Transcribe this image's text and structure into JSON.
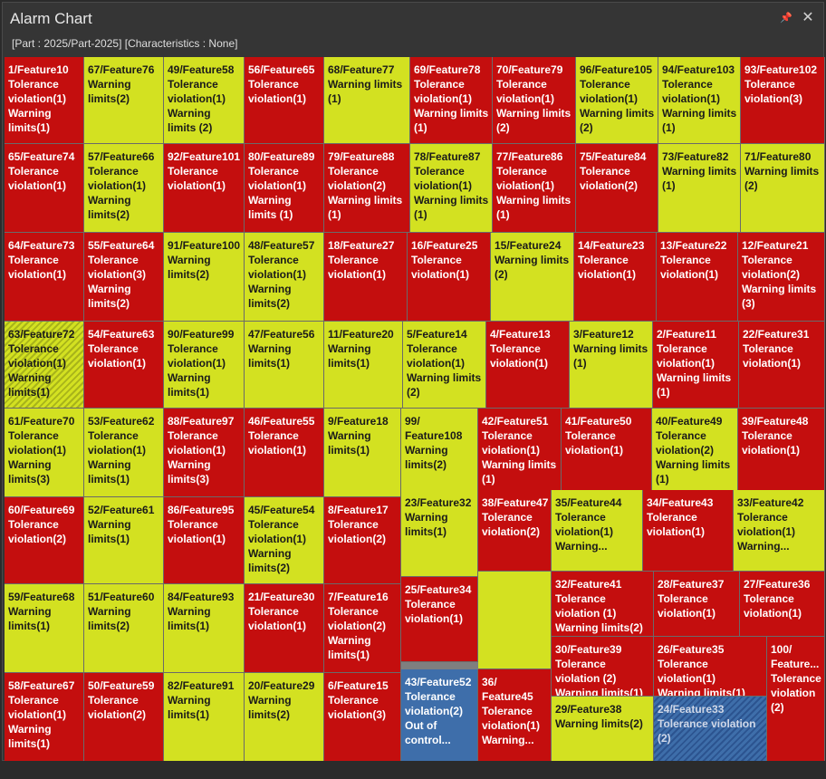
{
  "window": {
    "title": "Alarm Chart",
    "pin_icon": "pin-icon",
    "close_icon": "close-icon",
    "subtitle": "[Part : 2025/Part-2025] [Characteristics : None]"
  },
  "colors": {
    "tolerance_violation": "#c40e0e",
    "warning": "#d3e121",
    "out_of_control": "#3e6eaa"
  },
  "cells": [
    {
      "id": "c1",
      "label": "1/Feature10\nTolerance violation(1)\nWarning limits(1)",
      "color": "red"
    },
    {
      "id": "c67",
      "label": "67/Feature76\nWarning limits(2)",
      "color": "yellow"
    },
    {
      "id": "c49",
      "label": "49/Feature58\nTolerance violation(1)\nWarning limits (2)",
      "color": "yellow"
    },
    {
      "id": "c56",
      "label": "56/Feature65\nTolerance violation(1)",
      "color": "red"
    },
    {
      "id": "c68",
      "label": "68/Feature77\nWarning limits (1)",
      "color": "yellow"
    },
    {
      "id": "c69",
      "label": "69/Feature78\nTolerance violation(1)\nWarning limits (1)",
      "color": "red"
    },
    {
      "id": "c70",
      "label": "70/Feature79\nTolerance violation(1)\nWarning limits (2)",
      "color": "red"
    },
    {
      "id": "c96",
      "label": "96/Feature105\nTolerance violation(1)\nWarning limits (2)",
      "color": "yellow"
    },
    {
      "id": "c94",
      "label": "94/Feature103\nTolerance violation(1)\nWarning limits (1)",
      "color": "yellow"
    },
    {
      "id": "c93",
      "label": "93/Feature102\nTolerance violation(3)",
      "color": "red"
    },
    {
      "id": "c65",
      "label": "65/Feature74\nTolerance violation(1)",
      "color": "red"
    },
    {
      "id": "c57",
      "label": "57/Feature66\nTolerance violation(1)\nWarning limits(2)",
      "color": "yellow"
    },
    {
      "id": "c92",
      "label": "92/Feature101\nTolerance violation(1)",
      "color": "red"
    },
    {
      "id": "c80",
      "label": "80/Feature89\nTolerance violation(1)\nWarning limits (1)",
      "color": "red"
    },
    {
      "id": "c79",
      "label": "79/Feature88\nTolerance violation(2)\nWarning limits (1)",
      "color": "red"
    },
    {
      "id": "c78",
      "label": "78/Feature87\nTolerance violation(1)\nWarning limits (1)",
      "color": "yellow"
    },
    {
      "id": "c77",
      "label": "77/Feature86\nTolerance violation(1)\nWarning limits (1)",
      "color": "red"
    },
    {
      "id": "c75",
      "label": "75/Feature84\nTolerance violation(2)",
      "color": "red"
    },
    {
      "id": "c73",
      "label": "73/Feature82\nWarning limits (1)",
      "color": "yellow"
    },
    {
      "id": "c71",
      "label": "71/Feature80\nWarning limits (2)",
      "color": "yellow"
    },
    {
      "id": "c64",
      "label": "64/Feature73\nTolerance violation(1)",
      "color": "red"
    },
    {
      "id": "c55",
      "label": "55/Feature64\nTolerance violation(3)\nWarning limits(2)",
      "color": "red"
    },
    {
      "id": "c91",
      "label": "91/Feature100\nWarning limits(2)",
      "color": "yellow"
    },
    {
      "id": "c48",
      "label": "48/Feature57\nTolerance violation(1)\nWarning limits(2)",
      "color": "yellow"
    },
    {
      "id": "c18",
      "label": "18/Feature27\nTolerance violation(1)",
      "color": "red"
    },
    {
      "id": "c16",
      "label": "16/Feature25\nTolerance violation(1)",
      "color": "red"
    },
    {
      "id": "c15",
      "label": "15/Feature24\nWarning limits (2)",
      "color": "yellow"
    },
    {
      "id": "c14",
      "label": "14/Feature23\nTolerance violation(1)",
      "color": "red"
    },
    {
      "id": "c13",
      "label": "13/Feature22\nTolerance violation(1)",
      "color": "red"
    },
    {
      "id": "c12",
      "label": "12/Feature21\nTolerance violation(2)\nWarning limits (3)",
      "color": "red"
    },
    {
      "id": "c63",
      "label": "63/Feature72\nTolerance violation(1)\nWarning limits(1)",
      "color": "hatch-y"
    },
    {
      "id": "c54",
      "label": "54/Feature63\nTolerance violation(1)",
      "color": "red"
    },
    {
      "id": "c90",
      "label": "90/Feature99\nTolerance violation(1)\nWarning limits(1)",
      "color": "yellow"
    },
    {
      "id": "c47",
      "label": "47/Feature56\nWarning limits(1)",
      "color": "yellow"
    },
    {
      "id": "c11",
      "label": "11/Feature20\nWarning limits(1)",
      "color": "yellow"
    },
    {
      "id": "c5",
      "label": "5/Feature14\nTolerance violation(1)\nWarning limits (2)",
      "color": "yellow"
    },
    {
      "id": "c4",
      "label": "4/Feature13\nTolerance violation(1)",
      "color": "red"
    },
    {
      "id": "c3",
      "label": "3/Feature12\nWarning limits (1)",
      "color": "yellow"
    },
    {
      "id": "c2",
      "label": "2/Feature11\nTolerance violation(1)\nWarning limits (1)",
      "color": "red"
    },
    {
      "id": "c22",
      "label": "22/Feature31\nTolerance violation(1)",
      "color": "red"
    },
    {
      "id": "c61",
      "label": "61/Feature70\nTolerance violation(1)\nWarning limits(3)",
      "color": "yellow"
    },
    {
      "id": "c53",
      "label": "53/Feature62\nTolerance violation(1)\nWarning limits(1)",
      "color": "yellow"
    },
    {
      "id": "c88",
      "label": "88/Feature97\nTolerance violation(1)\nWarning limits(3)",
      "color": "red"
    },
    {
      "id": "c46",
      "label": "46/Feature55\nTolerance violation(1)",
      "color": "red"
    },
    {
      "id": "c9",
      "label": "9/Feature18\nWarning limits(1)",
      "color": "yellow"
    },
    {
      "id": "c99",
      "label": "99/\nFeature108\nWarning limits(2)",
      "color": "yellow"
    },
    {
      "id": "c42",
      "label": "42/Feature51\nTolerance violation(1)\nWarning limits (1)",
      "color": "red"
    },
    {
      "id": "c41",
      "label": "41/Feature50\nTolerance violation(1)",
      "color": "red"
    },
    {
      "id": "c40",
      "label": "40/Feature49\nTolerance violation(2)\nWarning limits (1)",
      "color": "yellow"
    },
    {
      "id": "c39",
      "label": "39/Feature48\nTolerance violation(1)",
      "color": "red"
    },
    {
      "id": "c38",
      "label": "38/Feature47\nTolerance violation(2)",
      "color": "red"
    },
    {
      "id": "c35",
      "label": "35/Feature44\nTolerance violation(1)\nWarning...",
      "color": "yellow"
    },
    {
      "id": "c34",
      "label": "34/Feature43\nTolerance violation(1)",
      "color": "red"
    },
    {
      "id": "c33",
      "label": "33/Feature42\nTolerance violation(1)\nWarning...",
      "color": "yellow"
    },
    {
      "id": "c60",
      "label": "60/Feature69\nTolerance violation(2)",
      "color": "red"
    },
    {
      "id": "c52",
      "label": "52/Feature61\nWarning limits(1)",
      "color": "yellow"
    },
    {
      "id": "c86",
      "label": "86/Feature95\nTolerance violation(1)",
      "color": "red"
    },
    {
      "id": "c45",
      "label": "45/Feature54\nTolerance violation(1)\nWarning limits(2)",
      "color": "yellow"
    },
    {
      "id": "c8",
      "label": "8/Feature17\nTolerance violation(2)",
      "color": "red"
    },
    {
      "id": "c23",
      "label": "23/Feature32\nWarning limits(1)",
      "color": "yellow"
    },
    {
      "id": "c32",
      "label": "32/Feature41\nTolerance violation (1)\nWarning limits(2)",
      "color": "red"
    },
    {
      "id": "c28",
      "label": "28/Feature37\nTolerance violation(1)",
      "color": "red"
    },
    {
      "id": "c27",
      "label": "27/Feature36\nTolerance violation(1)",
      "color": "red"
    },
    {
      "id": "c59",
      "label": "59/Feature68\nWarning limits(1)",
      "color": "yellow"
    },
    {
      "id": "c51",
      "label": "51/Feature60\nWarning limits(2)",
      "color": "yellow"
    },
    {
      "id": "c84",
      "label": "84/Feature93\nWarning limits(1)",
      "color": "yellow"
    },
    {
      "id": "c21",
      "label": "21/Feature30\nTolerance violation(1)",
      "color": "red"
    },
    {
      "id": "c7",
      "label": "7/Feature16\nTolerance violation(2)\nWarning limits(1)",
      "color": "red"
    },
    {
      "id": "c25",
      "label": "25/Feature34\nTolerance violation(1)",
      "color": "red"
    },
    {
      "id": "cblank",
      "label": "",
      "color": "yellow"
    },
    {
      "id": "c30",
      "label": "30/Feature39\nTolerance violation (2)\nWarning limits(1)",
      "color": "red"
    },
    {
      "id": "c26",
      "label": "26/Feature35\nTolerance violation(1)\nWarning limits(1)",
      "color": "red"
    },
    {
      "id": "c100",
      "label": "100/\nFeature...\nTolerance violation (2)",
      "color": "red"
    },
    {
      "id": "c58",
      "label": "58/Feature67\nTolerance violation(1)\nWarning limits(1)",
      "color": "red"
    },
    {
      "id": "c50",
      "label": "50/Feature59\nTolerance violation(2)",
      "color": "red"
    },
    {
      "id": "c82",
      "label": "82/Feature91\nWarning limits(1)",
      "color": "yellow"
    },
    {
      "id": "c20",
      "label": "20/Feature29\nWarning limits(2)",
      "color": "yellow"
    },
    {
      "id": "c6",
      "label": "6/Feature15\nTolerance violation(3)",
      "color": "red"
    },
    {
      "id": "c43",
      "label": "43/Feature52\nTolerance violation(2)\nOut of control...",
      "color": "blue"
    },
    {
      "id": "c36",
      "label": "36/\nFeature45\nTolerance violation(1)\nWarning...",
      "color": "red"
    },
    {
      "id": "c29",
      "label": "29/Feature38\nWarning limits(2)",
      "color": "yellow"
    },
    {
      "id": "c24",
      "label": "24/Feature33\nTolerance violation (2)",
      "color": "hatch-b"
    }
  ]
}
